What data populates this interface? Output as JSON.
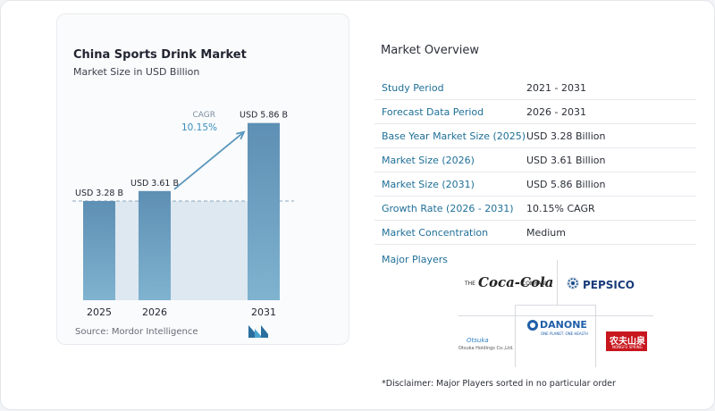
{
  "chart": {
    "title": "China Sports Drink Market",
    "subtitle": "Market Size in USD Billion",
    "source": "Source:  Mordor Intelligence",
    "cagr_label": "CAGR",
    "cagr_value": "10.15%"
  },
  "chart_data": {
    "type": "bar",
    "title": "China Sports Drink Market",
    "subtitle": "Market Size in USD Billion",
    "categories": [
      "2025",
      "2026",
      "2031"
    ],
    "values": [
      3.28,
      3.61,
      5.86
    ],
    "data_labels": [
      "USD 3.28 B",
      "USD 3.61 B",
      "USD 5.86 B"
    ],
    "unit": "USD Billion",
    "ylim": [
      0,
      6.5
    ],
    "grid": false,
    "colors": {
      "bar_top": "#5e8fb4",
      "bar_bottom": "#7fb3cf",
      "shade": "#dde8f1",
      "arrow": "#5b96bd",
      "cagr_text": "#3a8fbf"
    }
  },
  "overview": {
    "title": "Market Overview",
    "rows": [
      {
        "label": "Study Period",
        "value": "2021 - 2031"
      },
      {
        "label": "Forecast Data Period",
        "value": "2026 - 2031"
      },
      {
        "label": "Base Year Market Size (2025)",
        "value": "USD 3.28 Billion"
      },
      {
        "label": "Market Size (2026)",
        "value": "USD 3.61 Billion"
      },
      {
        "label": "Market Size (2031)",
        "value": "USD 5.86 Billion"
      },
      {
        "label": "Growth Rate (2026 - 2031)",
        "value": "10.15% CAGR"
      },
      {
        "label": "Market Concentration",
        "value": "Medium"
      }
    ]
  },
  "players": {
    "title": "Major Players",
    "logos": {
      "cocacola_the": "THE",
      "cocacola_name": "Coca-Cola",
      "cocacola_company": "COMPANY",
      "pepsico": "PEPSICO",
      "danone": "DANONE",
      "danone_tag": "ONE PLANET. ONE HEALTH",
      "otsuka": "Otsuka",
      "otsuka_sub": "Otsuka Holdings Co.,Ltd.",
      "nongfu": "农夫山泉",
      "nongfu_sub": "NONGFU SPRING"
    }
  },
  "disclaimer": "*Disclaimer: Major Players sorted in no particular order"
}
